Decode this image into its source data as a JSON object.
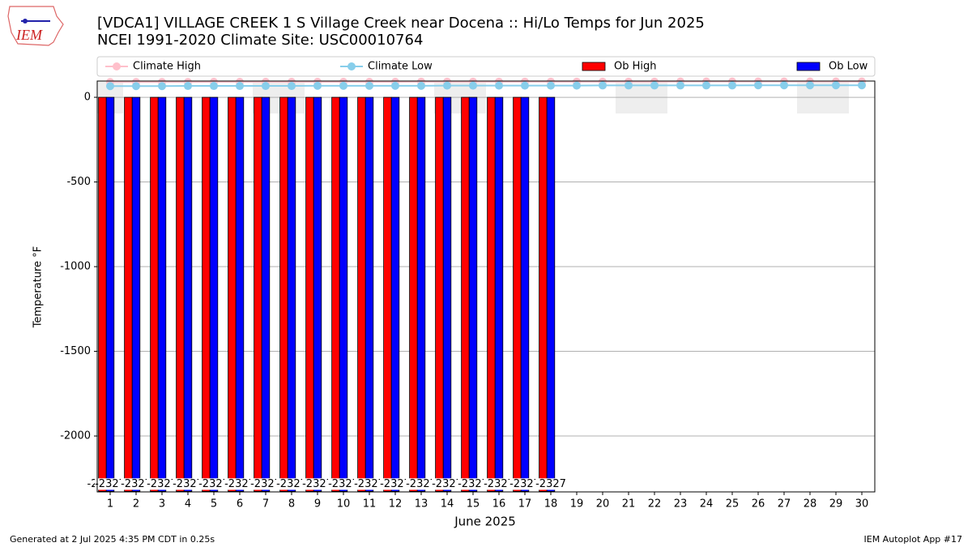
{
  "logo_text": "IEM",
  "footer": {
    "left": "Generated at 2 Jul 2025 4:35 PM CDT in 0.25s",
    "right": "IEM Autoplot App #17"
  },
  "chart_data": {
    "type": "bar",
    "title": "[VDCA1] VILLAGE CREEK 1 S Village Creek near Docena :: Hi/Lo Temps for Jun 2025",
    "subtitle": "NCEI 1991-2020 Climate Site: USC00010764",
    "xlabel": "June 2025",
    "ylabel": "Temperature °F",
    "categories": [
      "1",
      "2",
      "3",
      "4",
      "5",
      "6",
      "7",
      "8",
      "9",
      "10",
      "11",
      "12",
      "13",
      "14",
      "15",
      "16",
      "17",
      "18",
      "19",
      "20",
      "21",
      "22",
      "23",
      "24",
      "25",
      "26",
      "27",
      "28",
      "29",
      "30"
    ],
    "ylim": [
      -2330,
      96
    ],
    "yticks": [
      0,
      -500,
      -1000,
      -1500,
      -2000
    ],
    "grid": true,
    "legend": "top",
    "series": [
      {
        "name": "Climate High",
        "type": "line",
        "color": "#ffc0cb",
        "values": [
          90,
          90,
          90,
          90,
          91,
          91,
          91,
          91,
          91,
          91,
          91,
          91,
          92,
          92,
          92,
          92,
          92,
          92,
          92,
          92,
          92,
          92,
          93,
          93,
          93,
          93,
          93,
          93,
          93,
          93
        ]
      },
      {
        "name": "Climate Low",
        "type": "line",
        "color": "#87ceeb",
        "values": [
          66,
          66,
          66,
          67,
          67,
          67,
          67,
          67,
          68,
          68,
          68,
          68,
          68,
          69,
          69,
          69,
          69,
          69,
          69,
          70,
          70,
          70,
          70,
          70,
          70,
          71,
          71,
          71,
          71,
          71
        ]
      },
      {
        "name": "Ob High",
        "type": "bar",
        "color": "#ff0000",
        "values": [
          -2327,
          -2327,
          -2327,
          -2327,
          -2327,
          -2327,
          -2327,
          -2327,
          -2327,
          -2327,
          -2327,
          -2327,
          -2327,
          -2327,
          -2327,
          -2327,
          -2327,
          -2327,
          null,
          null,
          null,
          null,
          null,
          null,
          null,
          null,
          null,
          null,
          null,
          null
        ]
      },
      {
        "name": "Ob Low",
        "type": "bar",
        "color": "#0000ff",
        "values": [
          -2327,
          -2327,
          -2327,
          -2327,
          -2327,
          -2327,
          -2327,
          -2327,
          -2327,
          -2327,
          -2327,
          -2327,
          -2327,
          -2327,
          -2327,
          -2327,
          -2327,
          -2327,
          null,
          null,
          null,
          null,
          null,
          null,
          null,
          null,
          null,
          null,
          null,
          null
        ]
      }
    ]
  }
}
